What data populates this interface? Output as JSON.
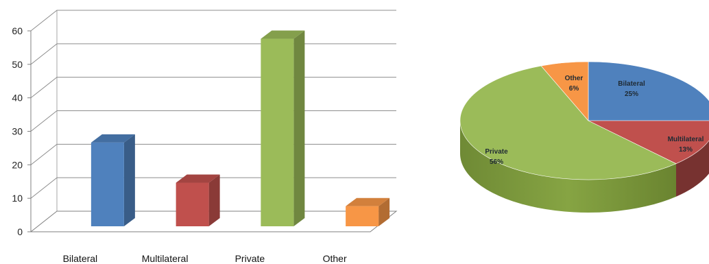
{
  "chart_data": [
    {
      "type": "bar",
      "categories": [
        "Bilateral",
        "Multilateral",
        "Private",
        "Other"
      ],
      "values": [
        25,
        13,
        56,
        6
      ],
      "colors": [
        "#4f81bd",
        "#c0504d",
        "#9bbb59",
        "#f79646"
      ],
      "yticks": [
        "0",
        "10",
        "20",
        "30",
        "40",
        "50",
        "60"
      ],
      "ylim": [
        0,
        60
      ],
      "grid": true,
      "style": "3d"
    },
    {
      "type": "pie",
      "labels": [
        "Bilateral",
        "Multilateral",
        "Private",
        "Other"
      ],
      "values": [
        25,
        13,
        56,
        6
      ],
      "value_labels": [
        "25%",
        "13%",
        "56%",
        "6%"
      ],
      "colors": [
        "#4f81bd",
        "#c0504d",
        "#9bbb59",
        "#f79646"
      ],
      "style": "3d"
    }
  ]
}
